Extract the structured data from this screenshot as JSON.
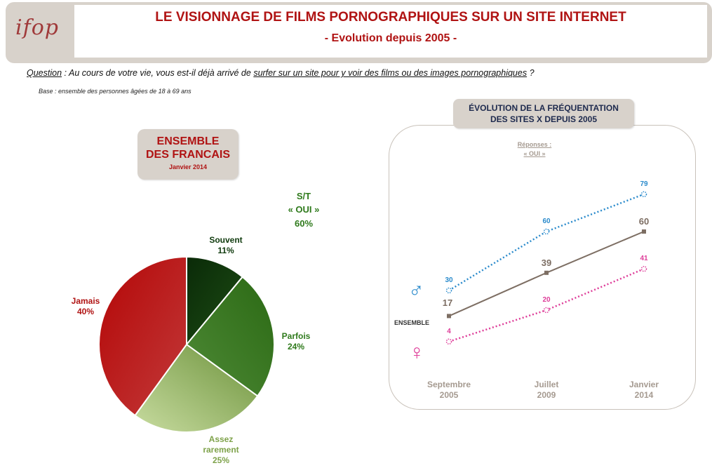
{
  "header": {
    "logo": "ifop",
    "title": "LE VISIONNAGE DE FILMS PORNOGRAPHIQUES SUR UN SITE INTERNET",
    "subtitle": "- Evolution depuis 2005 -"
  },
  "question": {
    "label": "Question",
    "text_a": " : Au cours de votre vie, vous est-il déjà arrivé de ",
    "text_b": "surfer sur un site pour y voir des films ou des images pornographiques",
    "text_c": " ?",
    "base": "Base : ensemble des personnes âgées de 18 à 69 ans"
  },
  "left": {
    "box_line1": "ENSEMBLE",
    "box_line2": "DES FRANCAIS",
    "box_date": "Janvier 2014",
    "st_line1": "S/T",
    "st_line2": "« OUI »",
    "st_value": "60%"
  },
  "right": {
    "box_line1": "ÉVOLUTION DE LA FRÉQUENTATION",
    "box_line2": "DES SITES X DEPUIS 2005",
    "responses_line1": "Réponses :",
    "responses_line2": "« OUI »",
    "ensemble_label": "ENSEMBLE",
    "male_symbol": "♂",
    "female_symbol": "♀"
  },
  "colors": {
    "red": "#b01313",
    "green": "#2f7a1c",
    "male": "#2b8bcc",
    "female": "#de3d99",
    "ensemble": "#7d6e63",
    "axis_text": "#a59a90"
  },
  "chart_data": [
    {
      "type": "pie",
      "title": "ENSEMBLE DES FRANCAIS",
      "subtitle": "Janvier 2014",
      "slices": [
        {
          "name": "Souvent",
          "value": 11,
          "label": "11%",
          "color": "#0f3a0d"
        },
        {
          "name": "Parfois",
          "value": 24,
          "label": "24%",
          "color": "#2f6e1a"
        },
        {
          "name": "Assez rarement",
          "value": 25,
          "label": "25%",
          "color": "#86a84e"
        },
        {
          "name": "Jamais",
          "value": 40,
          "label": "40%",
          "color": "#b40d0d"
        }
      ],
      "annotation": "S/T « OUI » 60%"
    },
    {
      "type": "line",
      "title": "ÉVOLUTION DE LA FRÉQUENTATION DES SITES X DEPUIS 2005",
      "categories": [
        "Septembre 2005",
        "Juillet 2009",
        "Janvier 2014"
      ],
      "category_lines": [
        [
          "Septembre",
          "2005"
        ],
        [
          "Juillet",
          "2009"
        ],
        [
          "Janvier",
          "2014"
        ]
      ],
      "ylim": [
        0,
        100
      ],
      "grid": false,
      "series": [
        {
          "name": "♂",
          "values": [
            30,
            60,
            79
          ],
          "labels": [
            "30",
            "60",
            "79"
          ],
          "color": "#2b8bcc",
          "style": "dotted"
        },
        {
          "name": "ENSEMBLE",
          "values": [
            17,
            39,
            60
          ],
          "labels": [
            "17",
            "39",
            "60"
          ],
          "color": "#7d6e63",
          "style": "solid"
        },
        {
          "name": "♀",
          "values": [
            4,
            20,
            41
          ],
          "labels": [
            "4",
            "20",
            "41"
          ],
          "color": "#de3d99",
          "style": "dotted"
        }
      ]
    }
  ]
}
